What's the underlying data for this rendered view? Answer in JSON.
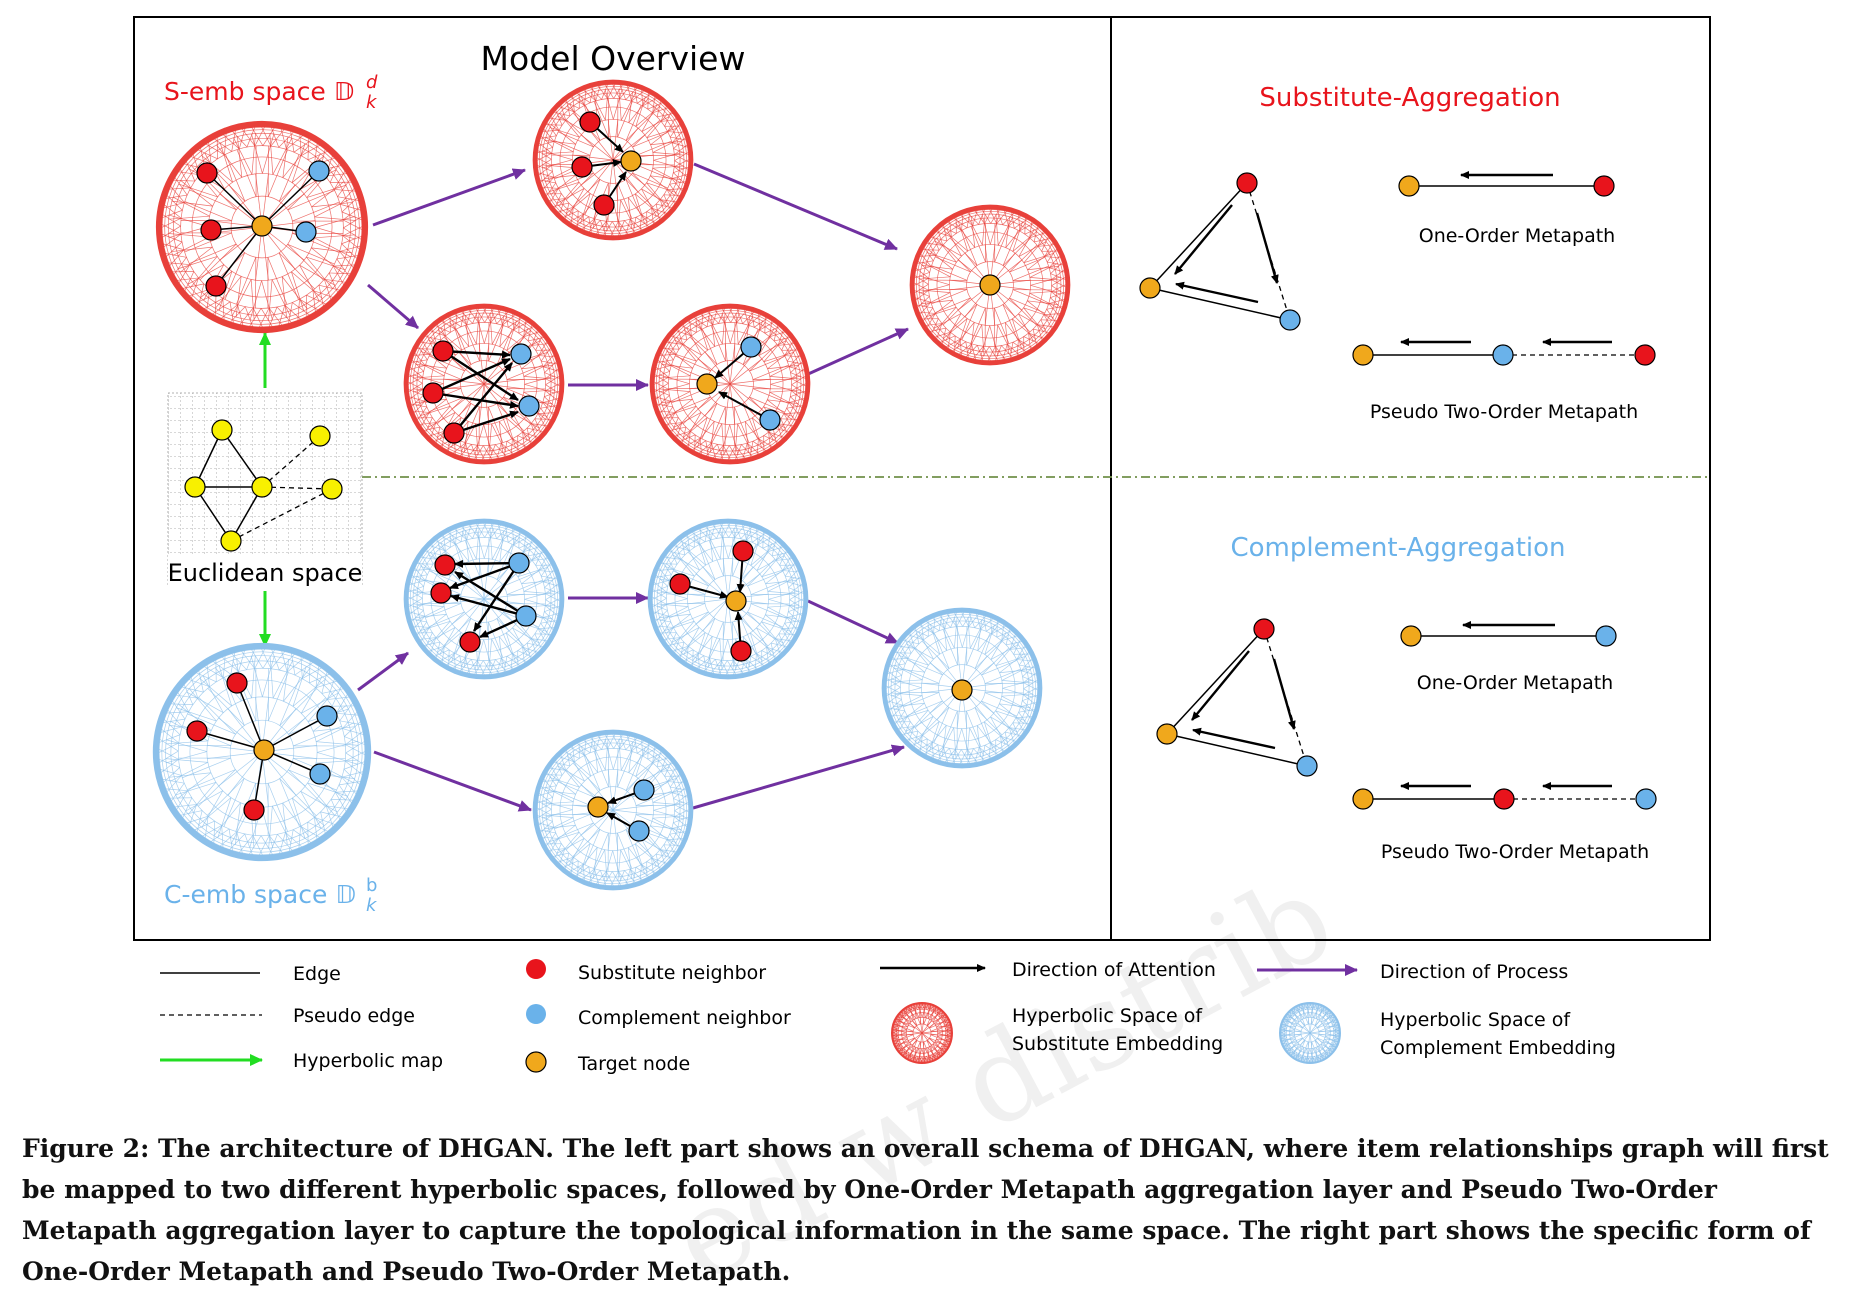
{
  "overview": {
    "title": "Model Overview",
    "s_space_label": "S-emb space",
    "s_space_symbol": "𝔻",
    "s_space_sup": "d",
    "s_space_sub": "k",
    "c_space_label": "C-emb space",
    "c_space_symbol": "𝔻",
    "c_space_sup": "b",
    "c_space_sub": "k",
    "euclidean_label": "Euclidean space"
  },
  "right_panel": {
    "substitute_title": "Substitute-Aggregation",
    "complement_title": "Complement-Aggregation",
    "one_order_label": "One-Order Metapath",
    "pseudo_two_order_label": "Pseudo Two-Order Metapath"
  },
  "legend": {
    "edge": "Edge",
    "pseudo_edge": "Pseudo edge",
    "hyperbolic_map": "Hyperbolic map",
    "substitute_neighbor": "Substitute neighbor",
    "complement_neighbor": "Complement neighbor",
    "target_node": "Target node",
    "direction_attention": "Direction of Attention",
    "direction_process": "Direction of Process",
    "hyp_sub_line1": "Hyperbolic Space of",
    "hyp_sub_line2": "Substitute Embedding",
    "hyp_comp_line1": "Hyperbolic Space of",
    "hyp_comp_line2": "Complement Embedding"
  },
  "colors": {
    "substitute": "#e8141c",
    "complement": "#6ab2ea",
    "target": "#f0a81c",
    "euclid_node": "#f8f000",
    "process_arrow": "#7030a0",
    "map_arrow": "#22dd22",
    "red_disk": "#e8403a",
    "blue_disk": "#8cc0ea",
    "divider": "#70904a"
  },
  "caption": "Figure 2: The architecture of DHGAN. The left part shows an overall schema of DHGAN, where item relationships graph will first be mapped to two different hyperbolic spaces, followed by One-Order Metapath aggregation layer and Pseudo Two-Order Metapath aggregation layer to capture the topological information in the same space. The right part shows the specific form of One-Order Metapath and Pseudo Two-Order Metapath."
}
